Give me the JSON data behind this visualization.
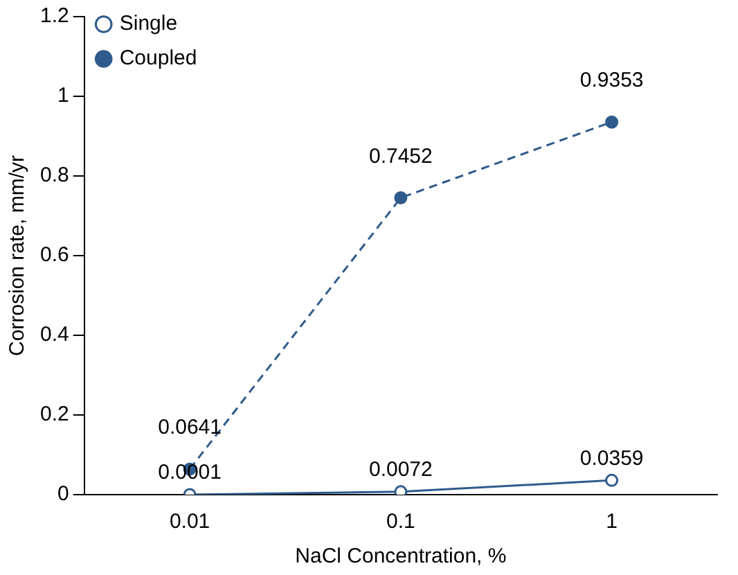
{
  "chart_data": {
    "type": "line",
    "xlabel": "NaCl Concentration, %",
    "ylabel": "Corrosion rate, mm/yr",
    "categories": [
      "0.01",
      "0.1",
      "1"
    ],
    "series": [
      {
        "name": "Single",
        "color": "#2f5b8c",
        "values": [
          0.0001,
          0.0072,
          0.0359
        ],
        "line_style": "solid",
        "marker": "circle"
      },
      {
        "name": "Coupled",
        "color": "#2f5b8c",
        "values": [
          0.0641,
          0.7452,
          0.9353
        ],
        "line_style": "dashed",
        "marker": "circle"
      }
    ],
    "ylim": [
      0,
      1.2
    ],
    "yticks": [
      0,
      0.2,
      0.4,
      0.6,
      0.8,
      1,
      1.2
    ],
    "grid": false,
    "legend": "top left",
    "data_labels": true
  }
}
